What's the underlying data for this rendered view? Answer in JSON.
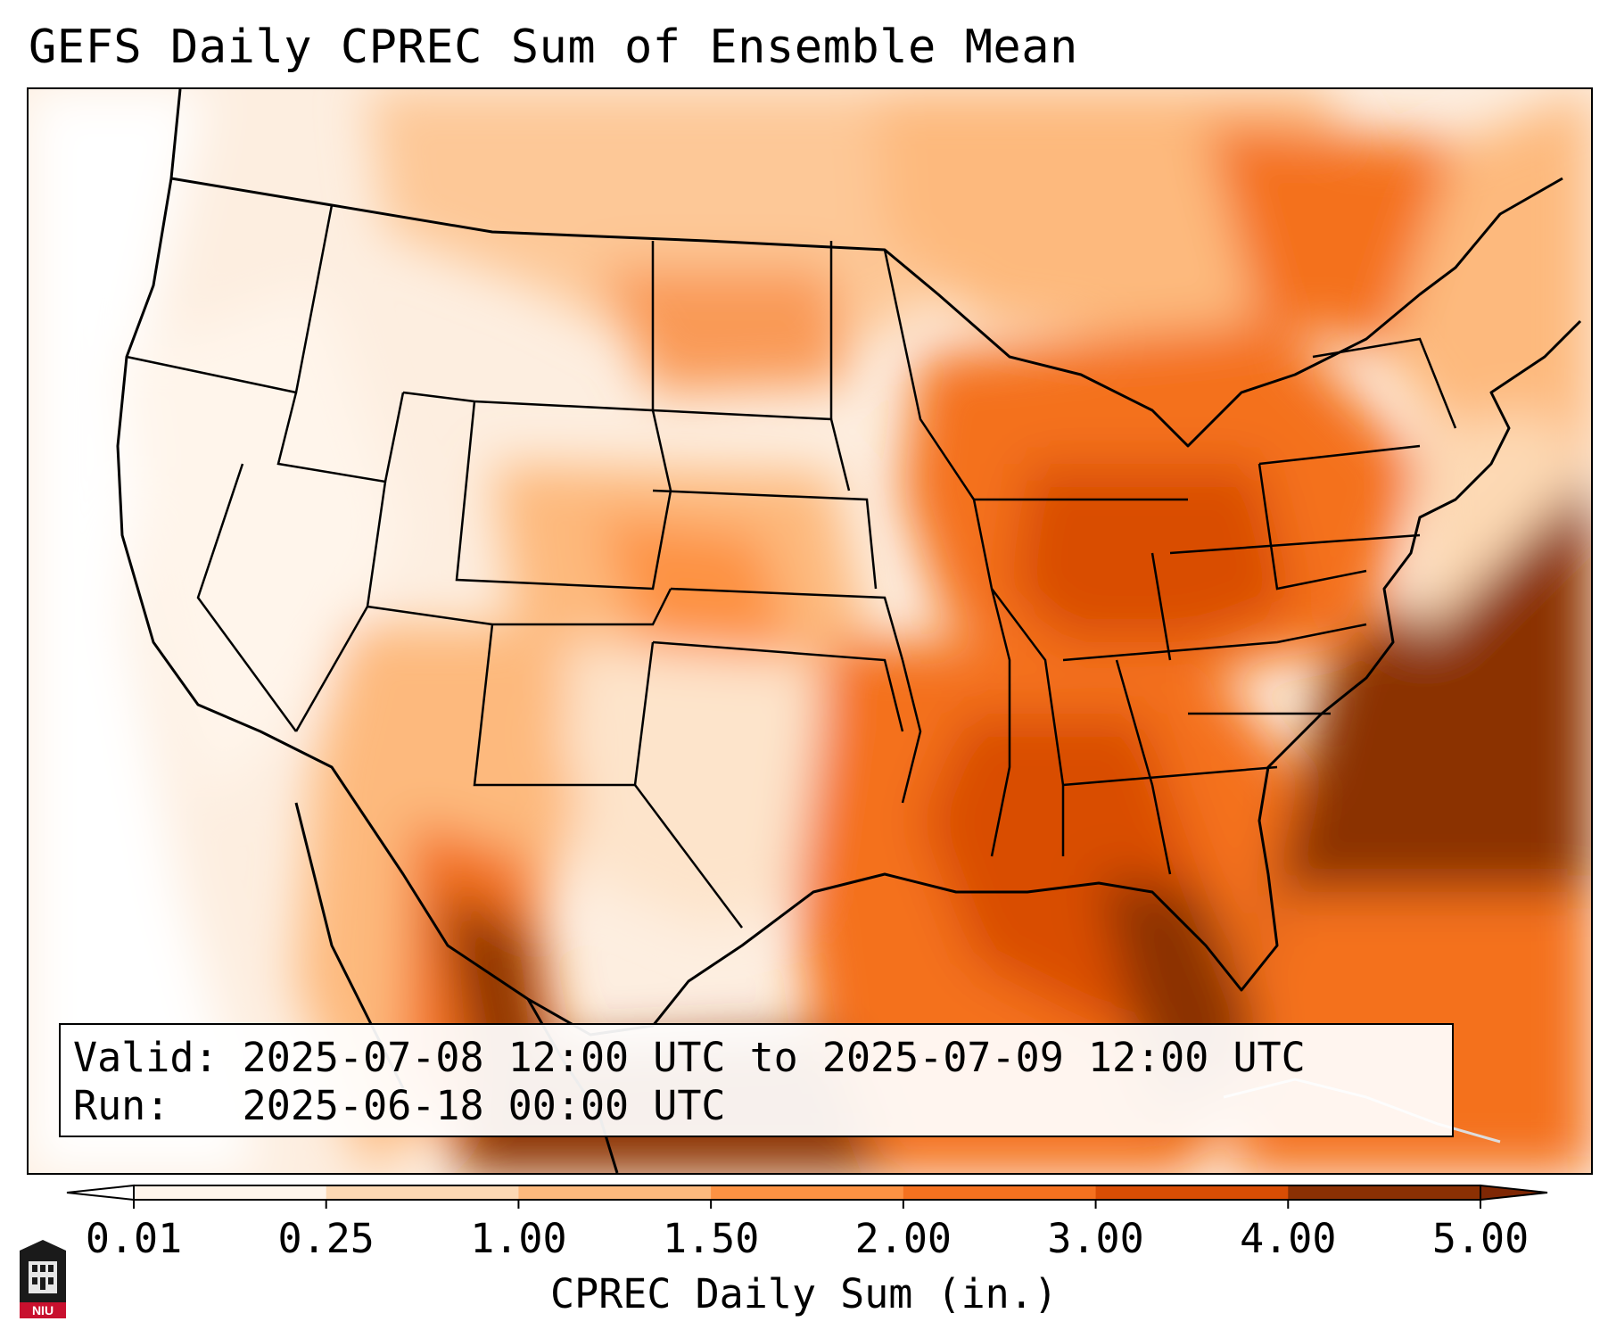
{
  "title": "GEFS Daily CPREC Sum of Ensemble Mean",
  "info": {
    "valid_label": "Valid:",
    "valid_value": "2025-07-08 12:00 UTC to 2025-07-09 12:00 UTC",
    "run_label": "Run:",
    "run_value": "2025-06-18 00:00 UTC"
  },
  "colorbar": {
    "label": "CPREC Daily Sum (in.)",
    "ticks": [
      "0.01",
      "0.25",
      "1.00",
      "1.50",
      "2.00",
      "3.00",
      "4.00",
      "5.00"
    ],
    "colors": [
      "#fff5eb",
      "#fdd9b4",
      "#fdb97d",
      "#fd9243",
      "#f4711f",
      "#d94d04",
      "#8b3003"
    ],
    "under_color": "#ffffff",
    "over_color": "#7f2704",
    "extend": "both"
  },
  "logo": {
    "text": "NIU",
    "color": "#c8102e"
  }
}
